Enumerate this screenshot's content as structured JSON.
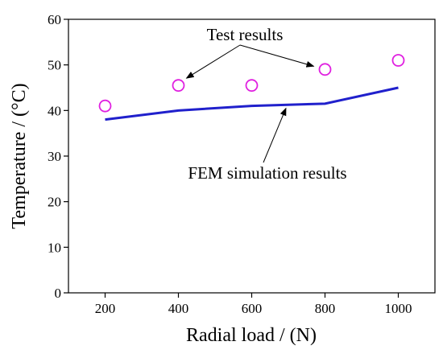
{
  "chart_data": {
    "type": "scatter",
    "title": "",
    "xlabel": "Radial load / (N)",
    "ylabel": "Temperature / (°C)",
    "xlim": [
      100,
      1100
    ],
    "ylim": [
      0,
      60
    ],
    "x_ticks": [
      200,
      400,
      600,
      800,
      1000
    ],
    "y_ticks": [
      0,
      10,
      20,
      30,
      40,
      50,
      60
    ],
    "grid": false,
    "legend": "none",
    "series": [
      {
        "kind": "scatter",
        "marker": "open-circle",
        "color": "#e020e0",
        "points": [
          {
            "x": 200,
            "y": 41
          },
          {
            "x": 400,
            "y": 45.5
          },
          {
            "x": 600,
            "y": 45.5
          },
          {
            "x": 800,
            "y": 49
          },
          {
            "x": 1000,
            "y": 51
          }
        ]
      },
      {
        "kind": "line",
        "color": "#2020cc",
        "points": [
          {
            "x": 200,
            "y": 38
          },
          {
            "x": 400,
            "y": 40
          },
          {
            "x": 600,
            "y": 41
          },
          {
            "x": 800,
            "y": 41.5
          },
          {
            "x": 1000,
            "y": 45
          }
        ]
      }
    ],
    "annotations": [
      {
        "text": "Test results",
        "points_to": [
          {
            "x": 400,
            "y": 45.5
          },
          {
            "x": 800,
            "y": 49
          }
        ]
      },
      {
        "text": "FEM simulation results",
        "points_to": [
          {
            "x": 700,
            "y": 41.2
          }
        ]
      }
    ]
  }
}
